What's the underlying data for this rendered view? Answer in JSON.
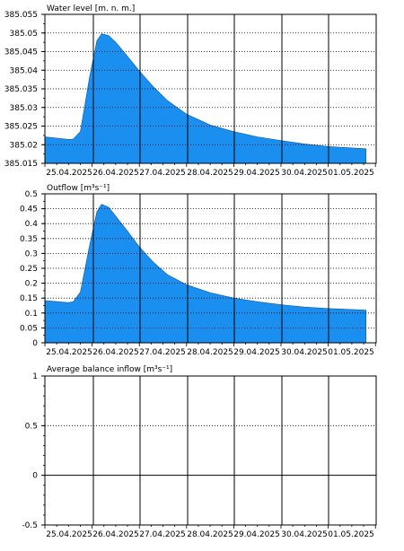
{
  "colors": {
    "fill": "#1a8fef",
    "grid": "#000000",
    "background": "#ffffff"
  },
  "x_labels": [
    "25.04.2025",
    "26.04.2025",
    "27.04.2025",
    "28.04.2025",
    "29.04.2025",
    "30.04.2025",
    "01.05.2025"
  ],
  "chart_data": [
    {
      "type": "area",
      "title": "Water level [m. n. m.]",
      "ylim": [
        385.015,
        385.055
      ],
      "yticks": [
        "385.055",
        "385.05",
        "385.045",
        "385.04",
        "385.035",
        "385.03",
        "385.025",
        "385.02",
        "385.015"
      ],
      "x": [
        0,
        0.5,
        0.6,
        0.75,
        0.95,
        1.1,
        1.2,
        1.35,
        1.5,
        1.7,
        2,
        2.3,
        2.6,
        3,
        3.5,
        4,
        4.5,
        5,
        5.5,
        6,
        6.8
      ],
      "y": [
        385.0221,
        385.0214,
        385.0215,
        385.0235,
        385.0385,
        385.0479,
        385.0498,
        385.0493,
        385.0475,
        385.0445,
        385.0398,
        385.0355,
        385.0318,
        385.0282,
        385.0253,
        385.0235,
        385.0221,
        385.0211,
        385.0202,
        385.0195,
        385.0189
      ]
    },
    {
      "type": "area",
      "title": "Outflow [m³s⁻¹]",
      "ylim": [
        0,
        0.5
      ],
      "yticks": [
        "0.5",
        "0.45",
        "0.4",
        "0.35",
        "0.3",
        "0.25",
        "0.2",
        "0.15",
        "0.1",
        "0.05",
        "0"
      ],
      "x": [
        0,
        0.5,
        0.6,
        0.75,
        0.95,
        1.1,
        1.2,
        1.35,
        1.5,
        1.7,
        2,
        2.3,
        2.6,
        3,
        3.5,
        4,
        4.5,
        5,
        5.5,
        6,
        6.8
      ],
      "y": [
        0.142,
        0.135,
        0.138,
        0.17,
        0.33,
        0.44,
        0.465,
        0.455,
        0.425,
        0.385,
        0.322,
        0.27,
        0.228,
        0.195,
        0.168,
        0.15,
        0.138,
        0.128,
        0.12,
        0.115,
        0.11
      ]
    },
    {
      "type": "line",
      "title": "Average balance inflow  [m³s⁻¹]",
      "ylim": [
        -0.5,
        1
      ],
      "yticks": [
        "1",
        "0.5",
        "0",
        "-0.5"
      ],
      "x": [],
      "y": []
    }
  ]
}
